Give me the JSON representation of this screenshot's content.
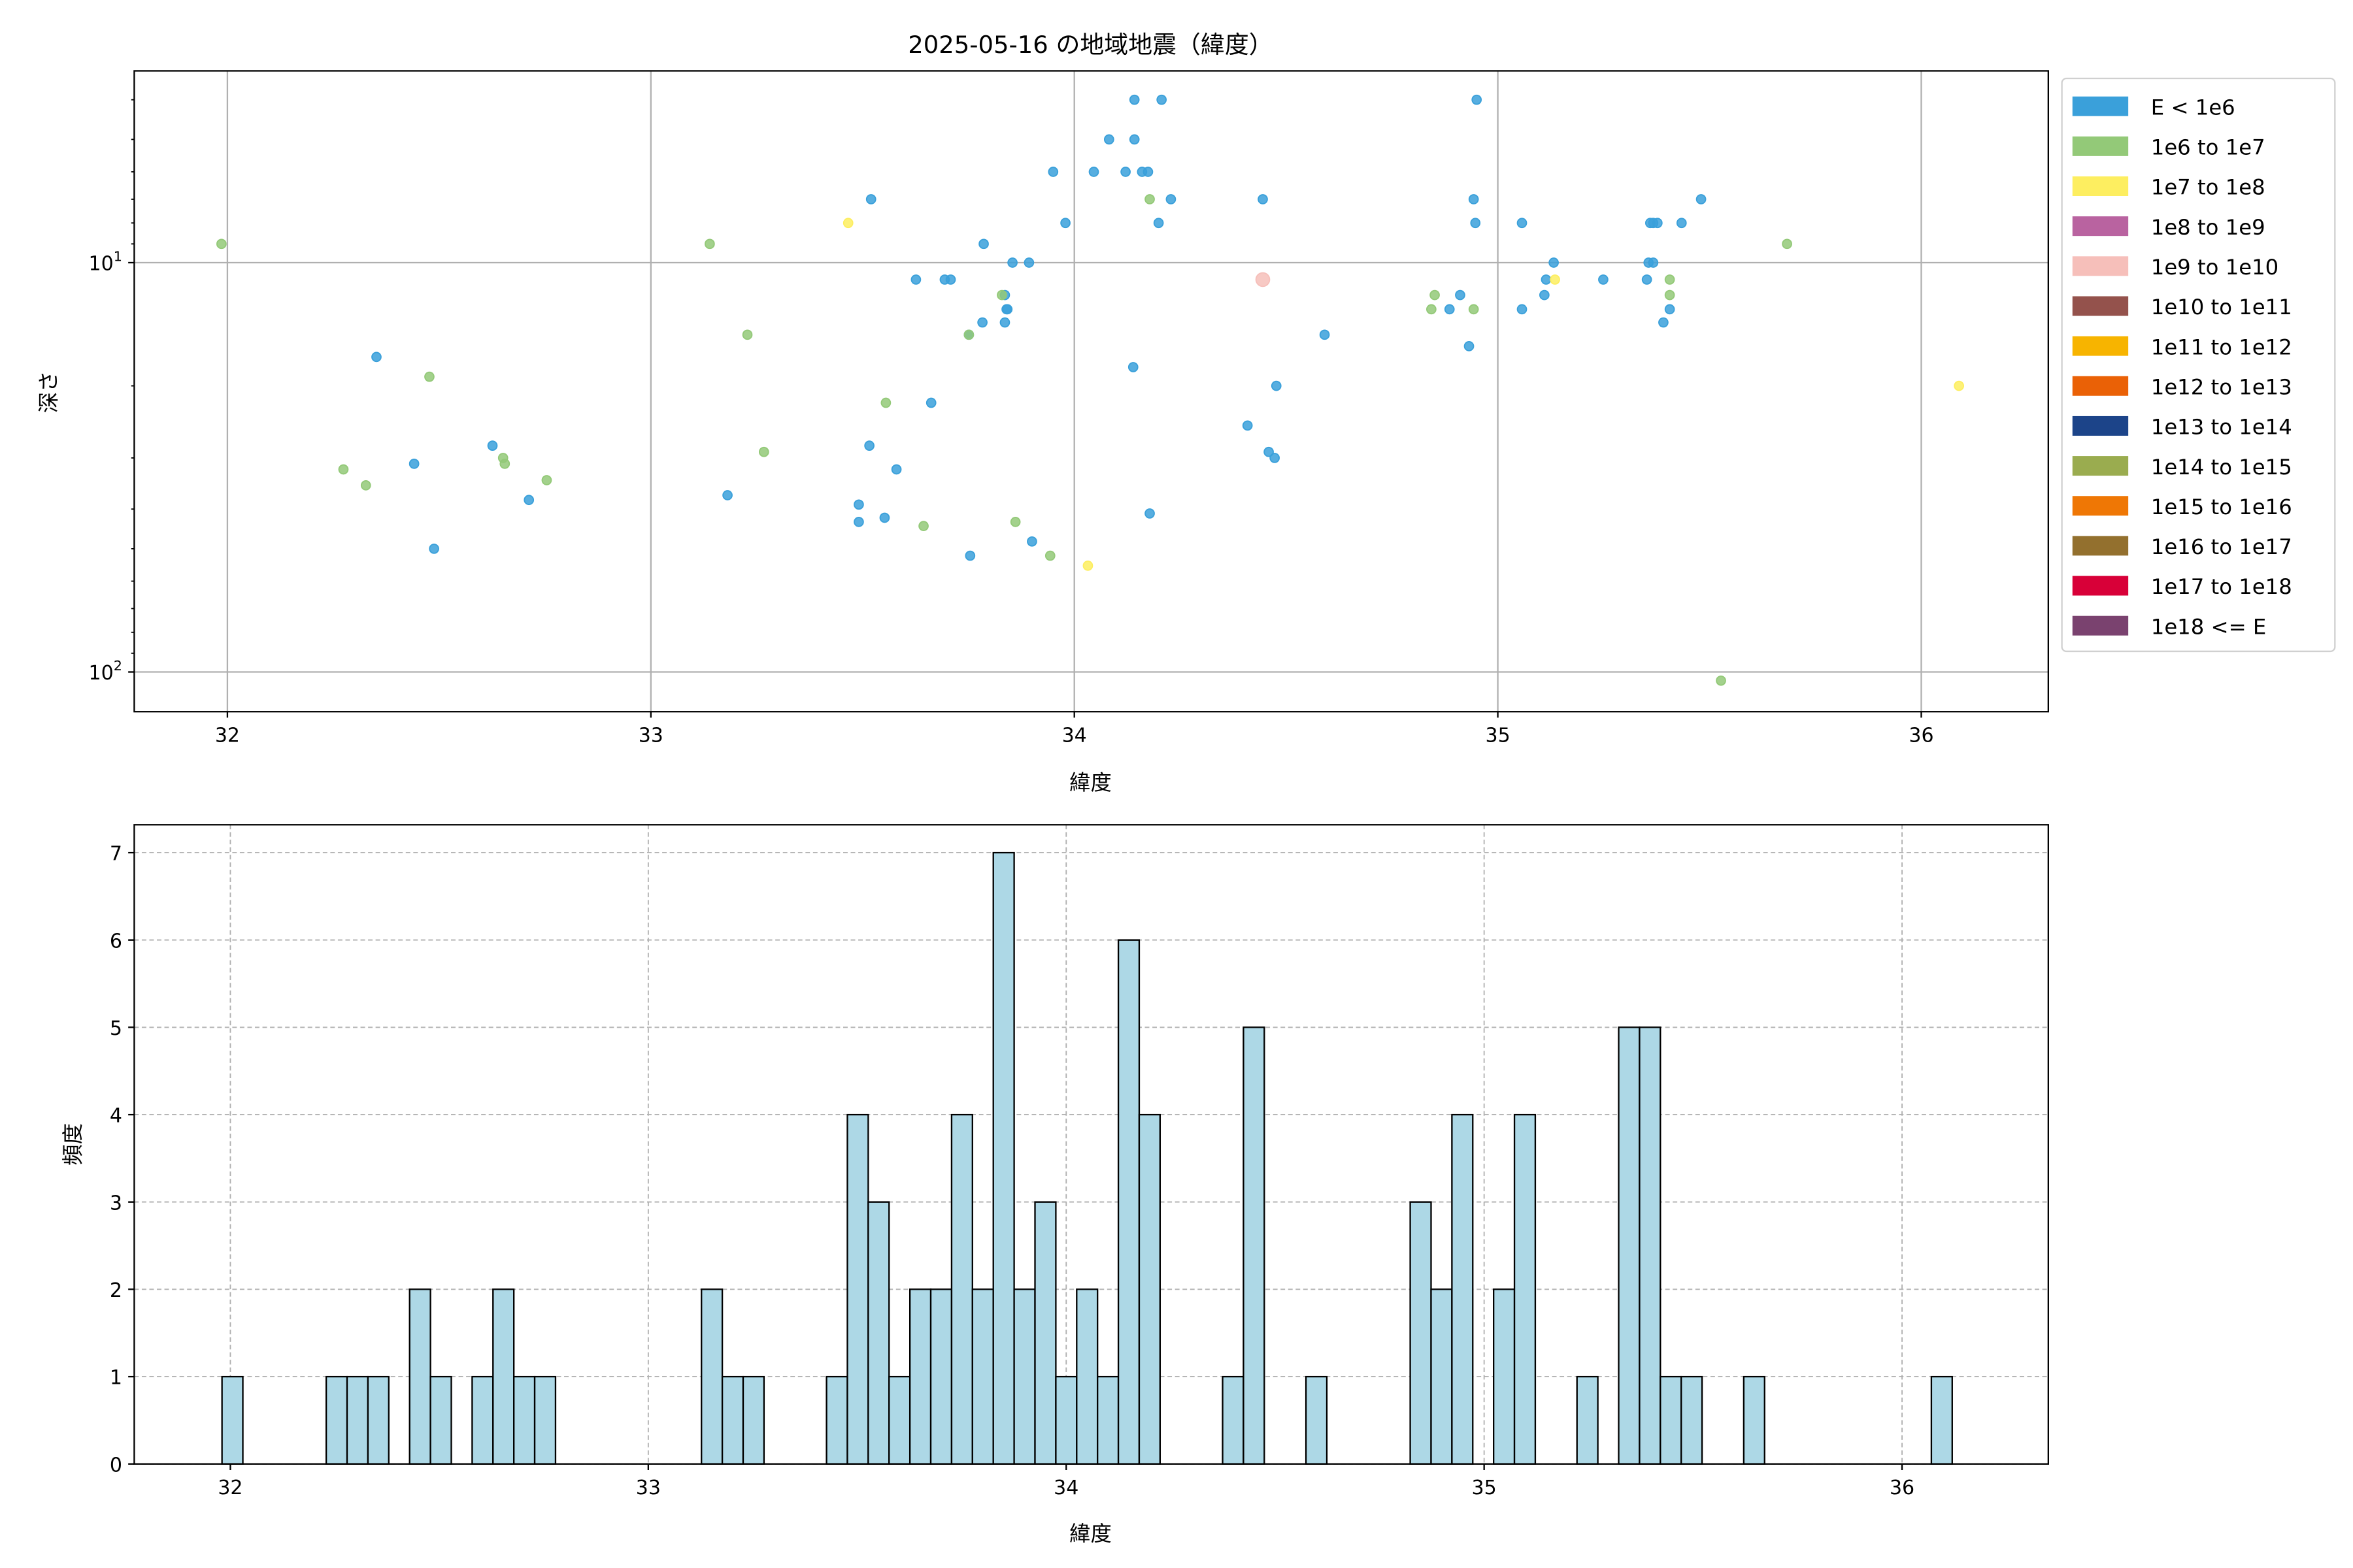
{
  "chart_data": [
    {
      "type": "scatter",
      "title": "2025-05-16 の地域地震（緯度）",
      "xlabel": "緯度",
      "ylabel": "深さ",
      "xlim": [
        31.78,
        36.3
      ],
      "ylim": [
        125,
        3.4
      ],
      "yscale": "log",
      "yaxis_inverted": true,
      "grid": true,
      "xticks": [
        32,
        33,
        34,
        35,
        36
      ],
      "yticks": [
        {
          "value": 10,
          "base": "10",
          "exp": "1"
        },
        {
          "value": 100,
          "base": "10",
          "exp": "2"
        }
      ],
      "legend_position": "outside-right",
      "legend": [
        {
          "label": "E < 1e6",
          "color": "#3aa0da"
        },
        {
          "label": "1e6 to 1e7",
          "color": "#93c978"
        },
        {
          "label": "1e7 to 1e8",
          "color": "#fdee60"
        },
        {
          "label": "1e8 to 1e9",
          "color": "#b963a0"
        },
        {
          "label": "1e9 to 1e10",
          "color": "#f6bfba"
        },
        {
          "label": "1e10 to 1e11",
          "color": "#94524c"
        },
        {
          "label": "1e11 to 1e12",
          "color": "#f7b400"
        },
        {
          "label": "1e12 to 1e13",
          "color": "#ea6106"
        },
        {
          "label": "1e13 to 1e14",
          "color": "#1c4489"
        },
        {
          "label": "1e14 to 1e15",
          "color": "#9aac4f"
        },
        {
          "label": "1e15 to 1e16",
          "color": "#ef7705"
        },
        {
          "label": "1e16 to 1e17",
          "color": "#93702e"
        },
        {
          "label": "1e17 to 1e18",
          "color": "#d80038"
        },
        {
          "label": "1e18 <= E",
          "color": "#7a426f"
        }
      ],
      "points_format": [
        "latitude",
        "depth",
        "energy_class_index"
      ],
      "points": [
        [
          31.986,
          9,
          1
        ],
        [
          32.352,
          17,
          0
        ],
        [
          32.477,
          19,
          1
        ],
        [
          32.274,
          32,
          1
        ],
        [
          32.327,
          35,
          1
        ],
        [
          32.441,
          31,
          0
        ],
        [
          32.626,
          28,
          0
        ],
        [
          32.651,
          30,
          1
        ],
        [
          32.655,
          31,
          1
        ],
        [
          32.754,
          34,
          1
        ],
        [
          32.712,
          38,
          0
        ],
        [
          32.488,
          50,
          0
        ],
        [
          33.139,
          9,
          1
        ],
        [
          33.228,
          15,
          1
        ],
        [
          33.267,
          29,
          1
        ],
        [
          33.181,
          37,
          0
        ],
        [
          33.466,
          8,
          2
        ],
        [
          33.52,
          7,
          0
        ],
        [
          33.626,
          11,
          0
        ],
        [
          33.694,
          11,
          0
        ],
        [
          33.708,
          11,
          0
        ],
        [
          33.786,
          9,
          0
        ],
        [
          33.854,
          10,
          0
        ],
        [
          33.893,
          10,
          0
        ],
        [
          33.836,
          12,
          0
        ],
        [
          33.829,
          12,
          1
        ],
        [
          33.84,
          13,
          0
        ],
        [
          33.842,
          13,
          0
        ],
        [
          33.783,
          14,
          0
        ],
        [
          33.836,
          14,
          0
        ],
        [
          33.751,
          15,
          0
        ],
        [
          33.751,
          15,
          1
        ],
        [
          33.555,
          22,
          1
        ],
        [
          33.662,
          22,
          0
        ],
        [
          33.516,
          28,
          0
        ],
        [
          33.58,
          32,
          0
        ],
        [
          33.491,
          39,
          0
        ],
        [
          33.491,
          43,
          0
        ],
        [
          33.552,
          42,
          0
        ],
        [
          33.644,
          44,
          1
        ],
        [
          33.754,
          52,
          0
        ],
        [
          33.861,
          43,
          1
        ],
        [
          33.9,
          48,
          0
        ],
        [
          33.943,
          52,
          1
        ],
        [
          34.032,
          55,
          2
        ],
        [
          33.95,
          6,
          0
        ],
        [
          33.979,
          8,
          0
        ],
        [
          34.046,
          6,
          0
        ],
        [
          34.082,
          5,
          0
        ],
        [
          34.121,
          6,
          0
        ],
        [
          34.142,
          4,
          0
        ],
        [
          34.142,
          5,
          0
        ],
        [
          34.16,
          6,
          0
        ],
        [
          34.174,
          6,
          0
        ],
        [
          34.178,
          7,
          1
        ],
        [
          34.206,
          4,
          0
        ],
        [
          34.228,
          7,
          0
        ],
        [
          34.199,
          8,
          0
        ],
        [
          34.139,
          18,
          0
        ],
        [
          34.178,
          41,
          0
        ],
        [
          34.445,
          7,
          0
        ],
        [
          34.445,
          11,
          4
        ],
        [
          34.409,
          25,
          0
        ],
        [
          34.459,
          29,
          0
        ],
        [
          34.473,
          30,
          0
        ],
        [
          34.477,
          20,
          0
        ],
        [
          34.591,
          15,
          0
        ],
        [
          34.95,
          4,
          0
        ],
        [
          34.943,
          7,
          0
        ],
        [
          34.947,
          8,
          0
        ],
        [
          34.843,
          13,
          1
        ],
        [
          34.851,
          12,
          1
        ],
        [
          34.886,
          13,
          0
        ],
        [
          34.911,
          12,
          0
        ],
        [
          34.943,
          13,
          1
        ],
        [
          34.932,
          16,
          0
        ],
        [
          35.057,
          8,
          0
        ],
        [
          35.057,
          13,
          0
        ],
        [
          35.11,
          12,
          0
        ],
        [
          35.114,
          11,
          0
        ],
        [
          35.132,
          10,
          0
        ],
        [
          35.135,
          11,
          2
        ],
        [
          35.249,
          11,
          0
        ],
        [
          35.352,
          11,
          0
        ],
        [
          35.356,
          10,
          0
        ],
        [
          35.367,
          10,
          0
        ],
        [
          35.36,
          8,
          0
        ],
        [
          35.367,
          8,
          0
        ],
        [
          35.377,
          8,
          0
        ],
        [
          35.406,
          11,
          1
        ],
        [
          35.406,
          12,
          1
        ],
        [
          35.406,
          13,
          0
        ],
        [
          35.391,
          14,
          0
        ],
        [
          35.434,
          8,
          0
        ],
        [
          35.48,
          7,
          0
        ],
        [
          35.683,
          9,
          1
        ],
        [
          35.527,
          105,
          1
        ],
        [
          36.089,
          20,
          2
        ]
      ]
    },
    {
      "type": "bar",
      "subtype": "histogram",
      "title": "",
      "xlabel": "緯度",
      "ylabel": "頻度",
      "xlim": [
        31.77,
        36.35
      ],
      "ylim": [
        0,
        7.32
      ],
      "grid": true,
      "grid_style": "dashed",
      "xticks": [
        32,
        33,
        34,
        35,
        36
      ],
      "yticks": [
        0,
        1,
        2,
        3,
        4,
        5,
        6,
        7
      ],
      "bar_color": "#add8e6",
      "edge_color": "#000000",
      "bin_start": 31.98,
      "bin_width": 0.04988,
      "counts": [
        1,
        0,
        0,
        0,
        0,
        1,
        1,
        1,
        0,
        2,
        1,
        0,
        1,
        2,
        1,
        1,
        0,
        0,
        0,
        0,
        0,
        0,
        0,
        2,
        1,
        1,
        0,
        0,
        0,
        1,
        4,
        3,
        1,
        2,
        2,
        4,
        2,
        7,
        2,
        3,
        1,
        2,
        1,
        6,
        4,
        0,
        0,
        0,
        1,
        5,
        0,
        0,
        1,
        0,
        0,
        0,
        0,
        3,
        2,
        4,
        0,
        2,
        4,
        0,
        0,
        1,
        0,
        5,
        5,
        1,
        1,
        0,
        0,
        1,
        0,
        0,
        0,
        0,
        0,
        0,
        0,
        0,
        1
      ]
    }
  ]
}
